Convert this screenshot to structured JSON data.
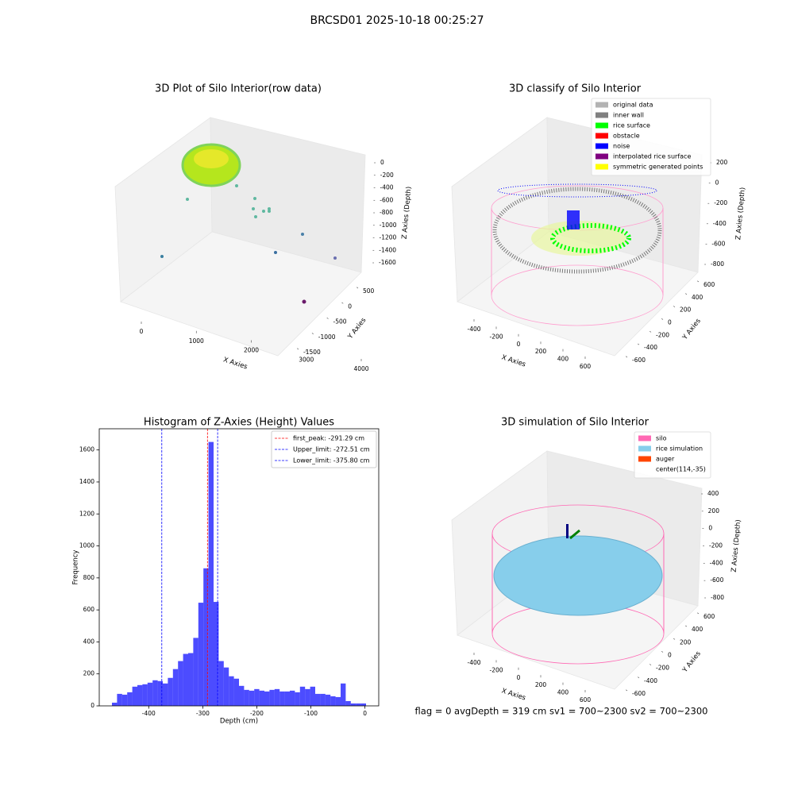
{
  "title": "BRCSD01 2025-10-18 00:25:27",
  "footer": "flag = 0     avgDepth = 319 cm  sv1 = 700~2300  sv2 = 700~2300",
  "chart_data": [
    {
      "type": "scatter3d",
      "title": "3D Plot of Silo Interior(row data)",
      "xlabel": "X Axies",
      "ylabel": "Y Axies",
      "zlabel": "Z Axies (Depth)",
      "xticks": [
        0,
        1000,
        2000,
        3000,
        4000
      ],
      "yticks": [
        -1500,
        -1000,
        -500,
        0,
        500
      ],
      "zticks": [
        -1600,
        -1400,
        -1200,
        -1000,
        -800,
        -600,
        -400,
        -200,
        0
      ]
    },
    {
      "type": "scatter3d",
      "title": "3D classify of Silo Interior",
      "xlabel": "X Axies",
      "ylabel": "Y Axies",
      "zlabel": "Z Axies (Depth)",
      "xticks": [
        -400,
        -200,
        0,
        200,
        400,
        600
      ],
      "yticks": [
        -600,
        -400,
        -200,
        0,
        200,
        400,
        600
      ],
      "zticks": [
        -800,
        -600,
        -400,
        -200,
        0,
        200
      ],
      "legend": [
        {
          "name": "original data",
          "color": "#b3b3b3"
        },
        {
          "name": "inner wall",
          "color": "#808080"
        },
        {
          "name": "rice surface",
          "color": "#00ff00"
        },
        {
          "name": "obstacle",
          "color": "#ff0000"
        },
        {
          "name": "noise",
          "color": "#0000ff"
        },
        {
          "name": "interpolated rice surface",
          "color": "#800080"
        },
        {
          "name": "symmetric generated points",
          "color": "#ffff00"
        }
      ]
    },
    {
      "type": "histogram",
      "title": "Histogram of Z-Axies (Height) Values",
      "xlabel": "Depth (cm)",
      "ylabel": "Frequency",
      "color": "#0000ff",
      "bins": [
        -468,
        -458.6,
        -449.2,
        -439.8,
        -430.4,
        -421,
        -411.6,
        -402.2,
        -392.8,
        -383.4,
        -374,
        -364.6,
        -355.2,
        -345.8,
        -336.4,
        -327,
        -317.6,
        -308.2,
        -298.8,
        -289.4,
        -280,
        -270.6,
        -261.2,
        -251.8,
        -242.4,
        -233,
        -223.6,
        -214.2,
        -204.8,
        -195.4,
        -186,
        -176.6,
        -167.2,
        -157.8,
        -148.4,
        -139,
        -129.6,
        -120.2,
        -110.8,
        -101.4,
        -92,
        -82.6,
        -73.2,
        -63.8,
        -54.4,
        -45,
        -35.6,
        -26.2,
        -16.8,
        -7.4,
        2
      ],
      "values": [
        20,
        75,
        70,
        85,
        120,
        130,
        135,
        145,
        160,
        155,
        140,
        175,
        230,
        280,
        325,
        330,
        425,
        645,
        860,
        1650,
        650,
        280,
        240,
        185,
        170,
        125,
        100,
        95,
        105,
        95,
        90,
        100,
        105,
        90,
        90,
        95,
        85,
        120,
        105,
        120,
        75,
        75,
        70,
        60,
        55,
        140,
        30,
        15,
        15,
        15
      ],
      "xlim": [
        -491.5,
        25.5
      ],
      "ylim": [
        0,
        1732.5
      ],
      "xticks": [
        -400,
        -300,
        -200,
        -100,
        0
      ],
      "yticks": [
        0,
        200,
        400,
        600,
        800,
        1000,
        1200,
        1400,
        1600
      ],
      "vlines": [
        {
          "value": -291.29,
          "label": "first_peak: -291.29 cm",
          "color": "#ff0000"
        },
        {
          "value": -272.51,
          "label": "Upper_limit: -272.51 cm",
          "color": "#0000ff"
        },
        {
          "value": -375.8,
          "label": "Lower_limit: -375.80 cm",
          "color": "#0000ff"
        }
      ]
    },
    {
      "type": "scatter3d",
      "title": "3D simulation of Silo Interior",
      "xlabel": "X Axies",
      "ylabel": "Y Axies",
      "zlabel": "Z Axies (Depth)",
      "xticks": [
        -400,
        -200,
        0,
        200,
        400,
        600
      ],
      "yticks": [
        -600,
        -400,
        -200,
        0,
        200,
        400,
        600
      ],
      "zticks": [
        -800,
        -600,
        -400,
        -200,
        0,
        200,
        400
      ],
      "legend": [
        {
          "name": "silo",
          "color": "#ff69b4"
        },
        {
          "name": "rice simulation",
          "color": "#87ceeb"
        },
        {
          "name": "auger",
          "color": "#ff4500"
        },
        {
          "name": "center(114,-35)"
        }
      ]
    }
  ]
}
